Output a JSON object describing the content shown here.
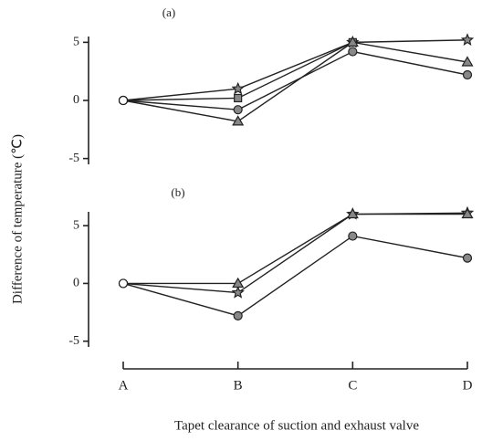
{
  "chart_data": [
    {
      "type": "line",
      "title": "(a)",
      "ylim": [
        -5.5,
        5.5
      ],
      "yticks": [
        5,
        0,
        -5
      ],
      "series": [
        {
          "marker": "star",
          "color": "#444",
          "values": [
            0,
            1,
            5,
            5.2
          ]
        },
        {
          "marker": "square",
          "color": "#444",
          "values": [
            0,
            0.2,
            5,
            null
          ]
        },
        {
          "marker": "circle",
          "color": "#444",
          "values": [
            0,
            -0.8,
            4.2,
            2.2
          ]
        },
        {
          "marker": "triangle",
          "color": "#444",
          "values": [
            0,
            -1.8,
            5,
            3.3
          ]
        }
      ]
    },
    {
      "type": "line",
      "title": "(b)",
      "ylim": [
        -5.5,
        6.2
      ],
      "yticks": [
        5,
        0,
        -5
      ],
      "categories": [
        "A",
        "B",
        "C",
        "D"
      ],
      "xlabel": "Tapet clearance of suction and exhaust valve",
      "ylabel": "Difference of temperature (℃)",
      "series": [
        {
          "marker": "star",
          "color": "#444",
          "values": [
            0,
            -0.8,
            6,
            6.1
          ]
        },
        {
          "marker": "triangle",
          "color": "#444",
          "values": [
            0,
            0,
            6,
            6
          ]
        },
        {
          "marker": "circle",
          "color": "#444",
          "values": [
            0,
            -2.8,
            4.1,
            2.2
          ]
        }
      ]
    }
  ]
}
